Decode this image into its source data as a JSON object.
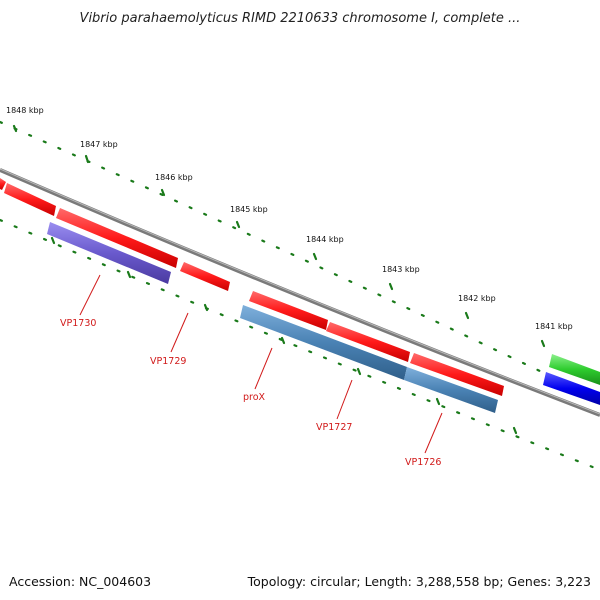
{
  "title": "Vibrio parahaemolyticus RIMD 2210633 chromosome I, complete ...",
  "accession": "Accession: NC_004603",
  "topology": "Topology: circular; Length: 3,288,558 bp; Genes: 3,223",
  "scale_labels": [
    "1848 kbp",
    "1847 kbp",
    "1846 kbp",
    "1845 kbp",
    "1844 kbp",
    "1843 kbp",
    "1842 kbp",
    "1841 kbp"
  ],
  "gene_labels": [
    "VP1730",
    "VP1729",
    "proX",
    "VP1727",
    "VP1726"
  ],
  "colors": {
    "backbone": "#7a7a7a",
    "cds": "#ff1a1a",
    "gene_purple": "#6a5acd",
    "gene_steel": "#4a82b4",
    "gene_green": "#2ecc2e",
    "gene_blue": "#0000ee",
    "ticks": "#1a7a1a",
    "label": "#d11a1a"
  }
}
